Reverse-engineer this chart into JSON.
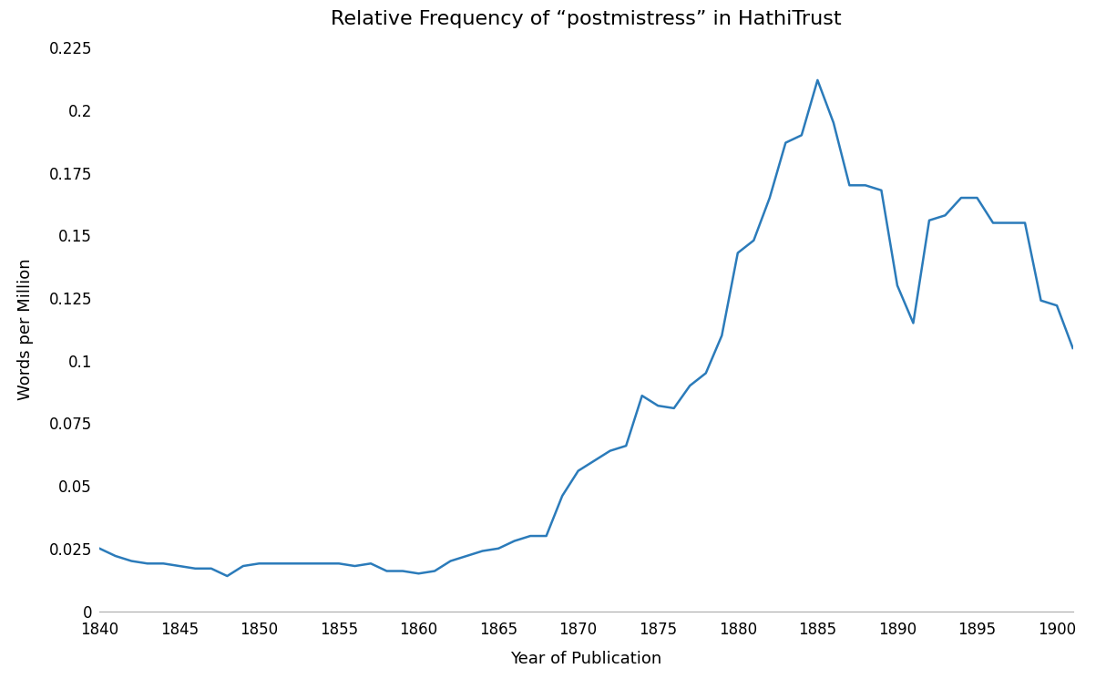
{
  "title": "Relative Frequency of “postmistress” in HathiTrust",
  "xlabel": "Year of Publication",
  "ylabel": "Words per Million",
  "line_color": "#2b7bba",
  "background_color": "#ffffff",
  "xlim": [
    1840,
    1901
  ],
  "ylim": [
    0,
    0.225
  ],
  "yticks": [
    0,
    0.025,
    0.05,
    0.075,
    0.1,
    0.125,
    0.15,
    0.175,
    0.2,
    0.225
  ],
  "xticks": [
    1840,
    1845,
    1850,
    1855,
    1860,
    1865,
    1870,
    1875,
    1880,
    1885,
    1890,
    1895,
    1900
  ],
  "years": [
    1840,
    1841,
    1842,
    1843,
    1844,
    1845,
    1846,
    1847,
    1848,
    1849,
    1850,
    1851,
    1852,
    1853,
    1854,
    1855,
    1856,
    1857,
    1858,
    1859,
    1860,
    1861,
    1862,
    1863,
    1864,
    1865,
    1866,
    1867,
    1868,
    1869,
    1870,
    1871,
    1872,
    1873,
    1874,
    1875,
    1876,
    1877,
    1878,
    1879,
    1880,
    1881,
    1882,
    1883,
    1884,
    1885,
    1886,
    1887,
    1888,
    1889,
    1890,
    1891,
    1892,
    1893,
    1894,
    1895,
    1896,
    1897,
    1898,
    1899,
    1900,
    1901
  ],
  "values": [
    0.025,
    0.022,
    0.02,
    0.019,
    0.019,
    0.018,
    0.017,
    0.017,
    0.014,
    0.018,
    0.019,
    0.019,
    0.019,
    0.019,
    0.019,
    0.019,
    0.018,
    0.019,
    0.016,
    0.016,
    0.015,
    0.016,
    0.02,
    0.022,
    0.024,
    0.025,
    0.028,
    0.03,
    0.03,
    0.046,
    0.056,
    0.06,
    0.064,
    0.066,
    0.086,
    0.082,
    0.081,
    0.09,
    0.095,
    0.11,
    0.143,
    0.148,
    0.165,
    0.187,
    0.19,
    0.212,
    0.195,
    0.17,
    0.17,
    0.168,
    0.13,
    0.115,
    0.156,
    0.158,
    0.165,
    0.165,
    0.155,
    0.155,
    0.155,
    0.124,
    0.122,
    0.105
  ],
  "title_fontsize": 16,
  "label_fontsize": 13,
  "tick_fontsize": 12
}
